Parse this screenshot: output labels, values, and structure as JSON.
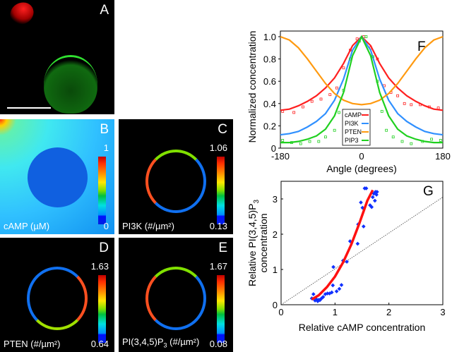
{
  "panels": {
    "A": {
      "label": "A"
    },
    "B": {
      "label": "B",
      "caption": "cAMP (µM)",
      "max": "1",
      "min": "0"
    },
    "C": {
      "label": "C",
      "caption": "PI3K (#/µm²)",
      "max": "1.06",
      "min": "0.13"
    },
    "D": {
      "label": "D",
      "caption": "PTEN (#/µm²)",
      "max": "1.63",
      "min": "0.64"
    },
    "E": {
      "label": "E",
      "caption_main": "PI(3,4,5)P",
      "caption_sub": "3",
      "caption_tail": " (#/µm²)",
      "max": "1.67",
      "min": "0.08"
    }
  },
  "chart_data": [
    {
      "type": "line",
      "panel_label": "F",
      "xlabel": "Angle (degrees)",
      "ylabel": "Normalized concentration",
      "xlim": [
        -180,
        180
      ],
      "ylim": [
        0,
        1.05
      ],
      "xticks": [
        "-180",
        "0",
        "180"
      ],
      "yticks": [
        "0",
        "0.2",
        "0.4",
        "0.6",
        "0.8",
        "1.0"
      ],
      "legend_position": "bottom-center",
      "x": [
        -180,
        -160,
        -140,
        -120,
        -100,
        -80,
        -60,
        -40,
        -20,
        0,
        20,
        40,
        60,
        80,
        100,
        120,
        140,
        160,
        180
      ],
      "series": [
        {
          "name": "cAMP",
          "color": "#ff2020",
          "values": [
            0.34,
            0.35,
            0.38,
            0.42,
            0.47,
            0.54,
            0.63,
            0.76,
            0.92,
            1.0,
            0.92,
            0.76,
            0.63,
            0.54,
            0.47,
            0.42,
            0.38,
            0.35,
            0.34
          ],
          "points": [
            [
              -175,
              0.33
            ],
            [
              -150,
              0.32
            ],
            [
              -130,
              0.37
            ],
            [
              -110,
              0.42
            ],
            [
              -90,
              0.44
            ],
            [
              -70,
              0.48
            ],
            [
              -55,
              0.54
            ],
            [
              -40,
              0.72
            ],
            [
              -25,
              0.88
            ],
            [
              -10,
              0.98
            ],
            [
              5,
              1.0
            ],
            [
              20,
              0.9
            ],
            [
              35,
              0.8
            ],
            [
              50,
              0.56
            ],
            [
              65,
              0.5
            ],
            [
              80,
              0.47
            ],
            [
              95,
              0.4
            ],
            [
              110,
              0.39
            ],
            [
              130,
              0.39
            ],
            [
              150,
              0.37
            ],
            [
              170,
              0.36
            ]
          ]
        },
        {
          "name": "PI3K",
          "color": "#3090ff",
          "values": [
            0.12,
            0.13,
            0.15,
            0.19,
            0.24,
            0.31,
            0.43,
            0.62,
            0.88,
            1.0,
            0.88,
            0.62,
            0.43,
            0.31,
            0.24,
            0.19,
            0.15,
            0.13,
            0.12
          ]
        },
        {
          "name": "PTEN",
          "color": "#ff9a10",
          "values": [
            1.0,
            0.97,
            0.9,
            0.8,
            0.69,
            0.58,
            0.49,
            0.43,
            0.4,
            0.39,
            0.4,
            0.43,
            0.49,
            0.58,
            0.69,
            0.8,
            0.9,
            0.97,
            1.0
          ]
        },
        {
          "name": "PIP3",
          "color": "#20d020",
          "values": [
            0.05,
            0.05,
            0.06,
            0.08,
            0.11,
            0.17,
            0.29,
            0.5,
            0.83,
            1.0,
            0.83,
            0.5,
            0.29,
            0.17,
            0.11,
            0.08,
            0.06,
            0.05,
            0.05
          ],
          "points": [
            [
              -175,
              0.07
            ],
            [
              -155,
              0.05
            ],
            [
              -135,
              0.04
            ],
            [
              -115,
              0.06
            ],
            [
              -95,
              0.06
            ],
            [
              -80,
              0.1
            ],
            [
              -60,
              0.16
            ],
            [
              -50,
              0.32
            ],
            [
              -40,
              0.52
            ],
            [
              -25,
              0.8
            ],
            [
              -5,
              0.96
            ],
            [
              10,
              1.0
            ],
            [
              25,
              0.82
            ],
            [
              35,
              0.6
            ],
            [
              45,
              0.33
            ],
            [
              55,
              0.16
            ],
            [
              70,
              0.1
            ],
            [
              90,
              0.06
            ],
            [
              110,
              0.04
            ],
            [
              135,
              0.06
            ],
            [
              155,
              0.08
            ],
            [
              175,
              0.07
            ]
          ]
        }
      ]
    },
    {
      "type": "scatter",
      "panel_label": "G",
      "xlabel": "Relative cAMP concentration",
      "ylabel_line1_main": "Relative PI(3,4,5)P",
      "ylabel_line1_sub": "3",
      "ylabel_line2": "concentration",
      "xlim": [
        0,
        3
      ],
      "ylim": [
        0,
        3.5
      ],
      "xticks": [
        "0",
        "1",
        "2",
        "3"
      ],
      "yticks": [
        "0",
        "1",
        "2",
        "3"
      ],
      "points": [
        [
          0.57,
          0.18
        ],
        [
          0.6,
          0.3
        ],
        [
          0.63,
          0.12
        ],
        [
          0.66,
          0.15
        ],
        [
          0.68,
          0.1
        ],
        [
          0.7,
          0.14
        ],
        [
          0.72,
          0.13
        ],
        [
          0.75,
          0.18
        ],
        [
          0.78,
          0.22
        ],
        [
          0.82,
          0.3
        ],
        [
          0.86,
          0.32
        ],
        [
          0.9,
          0.32
        ],
        [
          0.94,
          0.35
        ],
        [
          0.96,
          0.55
        ],
        [
          0.97,
          1.07
        ],
        [
          1.03,
          0.38
        ],
        [
          1.08,
          0.45
        ],
        [
          1.12,
          0.56
        ],
        [
          1.15,
          1.25
        ],
        [
          1.22,
          1.22
        ],
        [
          1.28,
          1.8
        ],
        [
          1.42,
          1.73
        ],
        [
          1.43,
          2.28
        ],
        [
          1.48,
          2.9
        ],
        [
          1.51,
          2.75
        ],
        [
          1.53,
          2.22
        ],
        [
          1.55,
          3.3
        ],
        [
          1.58,
          3.3
        ],
        [
          1.65,
          2.82
        ],
        [
          1.68,
          2.77
        ],
        [
          1.7,
          3.05
        ],
        [
          1.72,
          3.15
        ],
        [
          1.74,
          2.95
        ],
        [
          1.75,
          3.2
        ],
        [
          1.77,
          3.12
        ],
        [
          1.78,
          3.2
        ]
      ],
      "fit": {
        "color": "#ff1010",
        "x": [
          0.57,
          0.7,
          0.85,
          1.0,
          1.15,
          1.3,
          1.45,
          1.6,
          1.7
        ],
        "y": [
          0.15,
          0.27,
          0.5,
          0.8,
          1.2,
          1.7,
          2.3,
          2.95,
          3.25
        ]
      },
      "reference_line": {
        "x": [
          0,
          3
        ],
        "y": [
          0,
          3.05
        ]
      }
    }
  ]
}
